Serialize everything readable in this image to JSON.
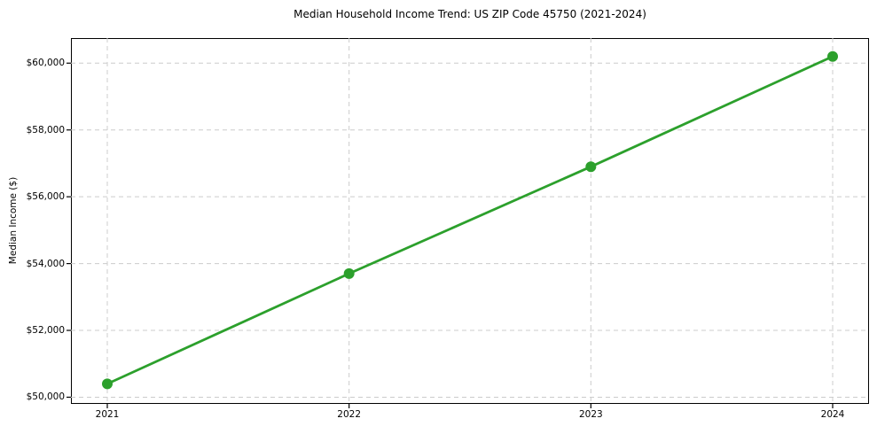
{
  "figure": {
    "title": "Median Household Income Trend: US ZIP Code 45750 (2021-2024)"
  },
  "chart_data": {
    "type": "line",
    "title": "Median Household Income Trend: US ZIP Code 45750 (2021-2024)",
    "xlabel": "",
    "ylabel": "Median Income ($)",
    "categories": [
      "2021",
      "2022",
      "2023",
      "2024"
    ],
    "values": [
      50400,
      53700,
      56900,
      60200
    ],
    "ytick_values": [
      50000,
      52000,
      54000,
      56000,
      58000,
      60000
    ],
    "ytick_labels": [
      "$50,000",
      "$52,000",
      "$54,000",
      "$56,000",
      "$58,000",
      "$60,000"
    ],
    "ylim": [
      49800,
      60750
    ],
    "grid": true,
    "grid_style": "dashed",
    "legend_position": "none",
    "marker": "circle",
    "colors": {
      "line": "#2ca02c",
      "marker": "#2ca02c",
      "grid": "#cccccc",
      "spine": "#000000",
      "text": "#000000",
      "background": "#ffffff"
    }
  }
}
